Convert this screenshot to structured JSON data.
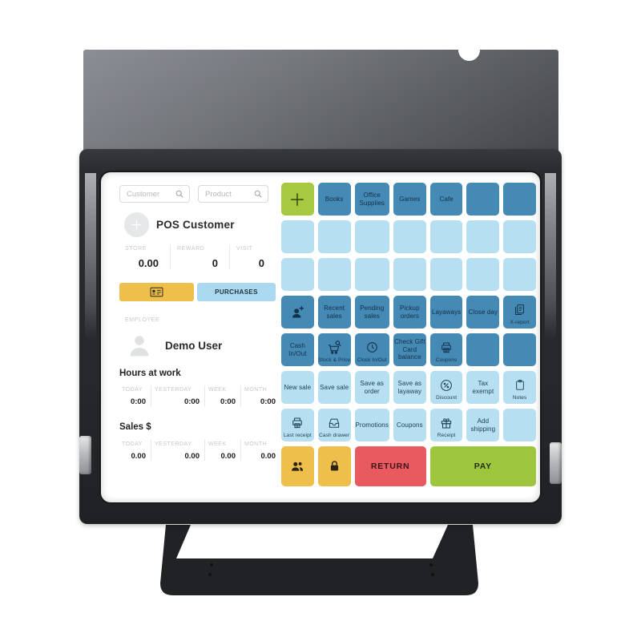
{
  "colors": {
    "grid_dark_blue": "#4589b5",
    "grid_light_blue": "#b7dff2",
    "category_green": "#a6c93f",
    "action_yellow": "#efbf4b",
    "return_red": "#e85a5f",
    "pay_green": "#9dc53e",
    "purchases_blue": "#a9d8ef"
  },
  "app": {
    "search": {
      "customer_placeholder": "Customer",
      "product_placeholder": "Product"
    },
    "customer": {
      "title": "POS Customer",
      "stats": [
        {
          "label": "STORE",
          "value": "0.00"
        },
        {
          "label": "REWARD",
          "value": "0"
        },
        {
          "label": "VISIT",
          "value": "0"
        }
      ],
      "purchases_label": "PURCHASES"
    },
    "employee": {
      "section_label": "EMPLOYEE",
      "name": "Demo User"
    },
    "hours": {
      "title": "Hours at work",
      "cols": [
        {
          "label": "TODAY",
          "value": "0:00"
        },
        {
          "label": "YESTERDAY",
          "value": "0:00"
        },
        {
          "label": "WEEK",
          "value": "0:00"
        },
        {
          "label": "MONTH",
          "value": "0:00"
        }
      ]
    },
    "sales": {
      "title": "Sales $",
      "cols": [
        {
          "label": "TODAY",
          "value": "0.00"
        },
        {
          "label": "YESTERDAY",
          "value": "0.00"
        },
        {
          "label": "WEEK",
          "value": "0.00"
        },
        {
          "label": "MONTH",
          "value": "0.00"
        }
      ]
    },
    "grid": {
      "buttons": [
        {
          "name": "add-category-button",
          "style_class": "green",
          "icon": "plus"
        },
        {
          "name": "category-books-button",
          "style_class": "dark",
          "label": "Books"
        },
        {
          "name": "category-office-supplies-button",
          "style_class": "dark",
          "label": "Office Supplies"
        },
        {
          "name": "category-games-button",
          "style_class": "dark",
          "label": "Games"
        },
        {
          "name": "category-cafe-button",
          "style_class": "dark",
          "label": "Cafe"
        },
        {
          "name": "empty-category-button",
          "style_class": "dark"
        },
        {
          "name": "empty-category-button",
          "style_class": "dark"
        },
        {
          "name": "empty-product-button",
          "style_class": "light"
        },
        {
          "name": "empty-product-button",
          "style_class": "light"
        },
        {
          "name": "empty-product-button",
          "style_class": "light"
        },
        {
          "name": "empty-product-button",
          "style_class": "light"
        },
        {
          "name": "empty-product-button",
          "style_class": "light"
        },
        {
          "name": "empty-product-button",
          "style_class": "light"
        },
        {
          "name": "empty-product-button",
          "style_class": "light"
        },
        {
          "name": "empty-product-button",
          "style_class": "light"
        },
        {
          "name": "empty-product-button",
          "style_class": "light"
        },
        {
          "name": "empty-product-button",
          "style_class": "light"
        },
        {
          "name": "empty-product-button",
          "style_class": "light"
        },
        {
          "name": "empty-product-button",
          "style_class": "light"
        },
        {
          "name": "empty-product-button",
          "style_class": "light"
        },
        {
          "name": "empty-product-button",
          "style_class": "light"
        },
        {
          "name": "add-customer-button",
          "style_class": "dark",
          "icon": "person-plus"
        },
        {
          "name": "recent-sales-button",
          "style_class": "dark",
          "label": "Recent sales"
        },
        {
          "name": "pending-sales-button",
          "style_class": "dark",
          "label": "Pending sales"
        },
        {
          "name": "pickup-orders-button",
          "style_class": "dark",
          "label": "Pickup orders"
        },
        {
          "name": "layaways-button",
          "style_class": "dark",
          "label": "Layaways"
        },
        {
          "name": "close-day-button",
          "style_class": "dark",
          "label": "Close day"
        },
        {
          "name": "x-report-button",
          "style_class": "dark has-sub",
          "icon": "report",
          "sub": "X-report"
        },
        {
          "name": "cash-in-out-button",
          "style_class": "dark",
          "label": "Cash In/Out"
        },
        {
          "name": "stock-and-price-button",
          "style_class": "dark has-sub",
          "icon": "cart-search",
          "sub": "Stock & Price"
        },
        {
          "name": "clock-in-out-button",
          "style_class": "dark has-sub",
          "icon": "clock",
          "sub": "Clock In/Out"
        },
        {
          "name": "check-gift-card-balance-button",
          "style_class": "dark",
          "label": "Check Gift Card balance"
        },
        {
          "name": "coupons-print-button",
          "style_class": "dark has-sub",
          "icon": "printer",
          "sub": "Coupons"
        },
        {
          "name": "empty-action-button",
          "style_class": "dark"
        },
        {
          "name": "empty-action-button",
          "style_class": "dark"
        },
        {
          "name": "new-sale-button",
          "style_class": "light",
          "label": "New sale"
        },
        {
          "name": "save-sale-button",
          "style_class": "light",
          "label": "Save sale"
        },
        {
          "name": "save-as-order-button",
          "style_class": "light",
          "label": "Save as order"
        },
        {
          "name": "save-as-layaway-button",
          "style_class": "light",
          "label": "Save as layaway"
        },
        {
          "name": "discount-button",
          "style_class": "light has-sub",
          "icon": "percent",
          "sub": "Discount"
        },
        {
          "name": "tax-exempt-button",
          "style_class": "light",
          "label": "Tax exempt"
        },
        {
          "name": "notes-button",
          "style_class": "light has-sub",
          "icon": "clipboard",
          "sub": "Notes"
        },
        {
          "name": "last-receipt-button",
          "style_class": "light has-sub",
          "icon": "printer",
          "sub": "Last receipt"
        },
        {
          "name": "cash-drawer-button",
          "style_class": "light has-sub",
          "icon": "drawer",
          "sub": "Cash drawer"
        },
        {
          "name": "promotions-button",
          "style_class": "light",
          "label": "Promotions"
        },
        {
          "name": "coupons-button",
          "style_class": "light",
          "label": "Coupons"
        },
        {
          "name": "receipt-button",
          "style_class": "light has-sub",
          "icon": "gift",
          "sub": "Receipt"
        },
        {
          "name": "add-shipping-button",
          "style_class": "light",
          "label": "Add shipping"
        },
        {
          "name": "empty-action-button",
          "style_class": "light"
        },
        {
          "name": "customers-button",
          "style_class": "yellow",
          "icon": "people"
        },
        {
          "name": "lock-button",
          "style_class": "yellow",
          "icon": "lock"
        },
        {
          "name": "return-button",
          "style_class": "red span2",
          "label": "RETURN"
        },
        {
          "name": "pay-button",
          "style_class": "pay span3",
          "label": "PAY"
        }
      ]
    }
  }
}
